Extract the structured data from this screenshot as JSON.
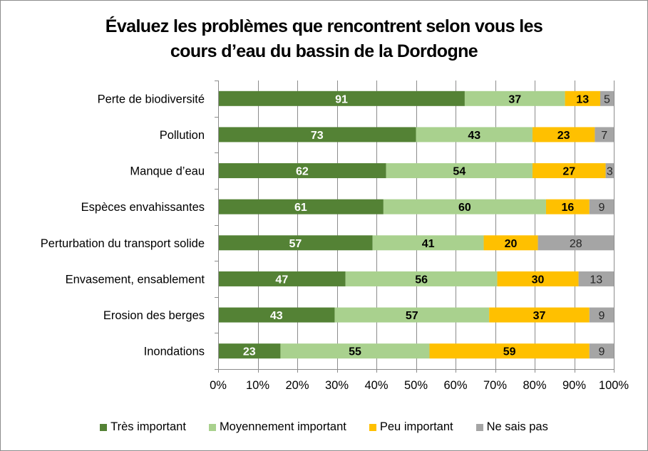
{
  "chart_data": {
    "type": "bar",
    "orientation": "horizontal",
    "stacked": "percent",
    "title": "Évaluez les problèmes que rencontrent selon vous les cours d’eau du bassin de la Dordogne",
    "title_lines": [
      "Évaluez les problèmes que rencontrent selon vous les",
      "cours d’eau du bassin de la Dordogne"
    ],
    "categories": [
      "Perte de biodiversité",
      "Pollution",
      "Manque d’eau",
      "Espèces envahissantes",
      "Perturbation du transport solide",
      "Envasement, ensablement",
      "Erosion des berges",
      "Inondations"
    ],
    "series": [
      {
        "name": "Très important",
        "color": "#548235",
        "label_color": "#ffffff",
        "label_bold": true,
        "values": [
          91,
          73,
          62,
          61,
          57,
          47,
          43,
          23
        ]
      },
      {
        "name": "Moyennement important",
        "color": "#a9d18e",
        "label_color": "#000000",
        "label_bold": true,
        "values": [
          37,
          43,
          54,
          60,
          41,
          56,
          57,
          55
        ]
      },
      {
        "name": "Peu important",
        "color": "#ffc000",
        "label_color": "#000000",
        "label_bold": true,
        "values": [
          13,
          23,
          27,
          16,
          20,
          30,
          37,
          59
        ]
      },
      {
        "name": "Ne sais pas",
        "color": "#a5a5a5",
        "label_color": "#262626",
        "label_bold": false,
        "values": [
          5,
          7,
          3,
          9,
          28,
          13,
          9,
          9
        ]
      }
    ],
    "xlabel": "",
    "ylabel": "",
    "xlim": [
      0,
      100
    ],
    "x_ticks": [
      "0%",
      "10%",
      "20%",
      "30%",
      "40%",
      "50%",
      "60%",
      "70%",
      "80%",
      "90%",
      "100%"
    ],
    "grid": true,
    "legend_position": "bottom",
    "gridline_color": "#8c8c8c"
  }
}
